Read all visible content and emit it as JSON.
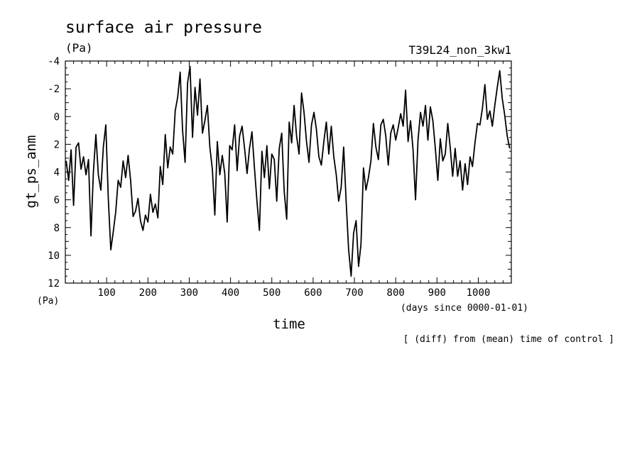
{
  "chart_data": {
    "type": "line",
    "title": "surface air pressure",
    "units": "(Pa)",
    "run_label": "T39L24_non_3kw1",
    "ylabel": "gt_ps_anm",
    "y_unit": "(Pa)",
    "xlabel": "time",
    "x_unit_note": "(days since 0000-01-01)",
    "footnote": "[ (diff) from (mean) time of control ]",
    "xlim": [
      0,
      1080
    ],
    "ylim": [
      12,
      -4
    ],
    "y_inverted": true,
    "x_ticks": [
      "100",
      "200",
      "300",
      "400",
      "500",
      "600",
      "700",
      "800",
      "900",
      "1000"
    ],
    "y_ticks": [
      "-4",
      "-2",
      "0",
      "2",
      "4",
      "6",
      "8",
      "10",
      "12"
    ],
    "grid": false,
    "series": [
      {
        "x": [
          2,
          8,
          14,
          20,
          26,
          32,
          38,
          44,
          50,
          56,
          62,
          68,
          74,
          80,
          86,
          92,
          98,
          104,
          110,
          116,
          122,
          128,
          134,
          140,
          146,
          152,
          158,
          164,
          170,
          176,
          182,
          188,
          194,
          200,
          206,
          212,
          218,
          224,
          230,
          236,
          242,
          248,
          254,
          260,
          266,
          272,
          278,
          284,
          290,
          296,
          302,
          308,
          314,
          320,
          326,
          332,
          338,
          344,
          350,
          356,
          362,
          368,
          374,
          380,
          386,
          392,
          398,
          404,
          410,
          416,
          422,
          428,
          434,
          440,
          446,
          452,
          458,
          464,
          470,
          476,
          482,
          488,
          494,
          500,
          506,
          512,
          518,
          524,
          530,
          536,
          542,
          548,
          554,
          560,
          566,
          572,
          578,
          584,
          590,
          596,
          602,
          608,
          614,
          620,
          626,
          632,
          638,
          644,
          650,
          656,
          662,
          668,
          674,
          680,
          686,
          692,
          698,
          704,
          710,
          716,
          722,
          728,
          734,
          740,
          746,
          752,
          758,
          764,
          770,
          776,
          782,
          788,
          794,
          800,
          806,
          812,
          818,
          824,
          830,
          836,
          842,
          848,
          854,
          860,
          866,
          872,
          878,
          884,
          890,
          896,
          902,
          908,
          914,
          920,
          926,
          932,
          938,
          944,
          950,
          956,
          962,
          968,
          974,
          980,
          986,
          992,
          998,
          1004,
          1010,
          1016,
          1022,
          1028,
          1034,
          1040,
          1046,
          1052,
          1058,
          1064,
          1070,
          1076
        ],
        "y": [
          3.2,
          4.6,
          2.4,
          6.4,
          2.2,
          1.9,
          3.8,
          2.9,
          4.2,
          3.1,
          8.6,
          4.0,
          1.3,
          4.2,
          5.3,
          2.2,
          0.6,
          5.9,
          9.6,
          8.3,
          6.9,
          4.6,
          5.1,
          3.2,
          4.4,
          2.8,
          4.6,
          7.2,
          6.8,
          5.9,
          7.5,
          8.2,
          7.1,
          7.6,
          5.6,
          6.9,
          6.3,
          7.3,
          3.6,
          4.9,
          1.3,
          3.7,
          2.2,
          2.7,
          -0.4,
          -1.4,
          -3.2,
          1.0,
          3.3,
          -2.4,
          -3.6,
          1.5,
          -2.1,
          -0.1,
          -2.7,
          1.2,
          0.3,
          -0.8,
          2.2,
          3.8,
          7.1,
          1.8,
          4.2,
          2.8,
          4.1,
          7.6,
          2.1,
          2.4,
          0.6,
          3.9,
          1.4,
          0.7,
          2.3,
          4.1,
          2.3,
          1.1,
          3.7,
          6.1,
          8.2,
          2.5,
          4.4,
          2.1,
          5.2,
          2.7,
          3.1,
          6.1,
          2.3,
          1.2,
          5.4,
          7.4,
          0.4,
          1.9,
          -0.8,
          1.4,
          2.7,
          -1.7,
          -0.3,
          1.8,
          3.3,
          0.6,
          -0.3,
          0.9,
          2.9,
          3.5,
          1.8,
          0.4,
          2.7,
          0.7,
          2.9,
          4.2,
          6.1,
          5.1,
          2.2,
          6.1,
          9.6,
          11.5,
          8.4,
          7.5,
          10.8,
          9.2,
          3.7,
          5.3,
          4.4,
          3.2,
          0.5,
          2.2,
          3.1,
          0.6,
          0.2,
          1.4,
          3.5,
          1.2,
          0.6,
          1.7,
          0.8,
          -0.2,
          0.7,
          -1.9,
          1.8,
          0.3,
          2.4,
          6.0,
          1.7,
          -0.3,
          0.7,
          -0.8,
          1.7,
          -0.7,
          0.3,
          2.3,
          4.6,
          1.6,
          3.2,
          2.7,
          0.5,
          2.2,
          4.3,
          2.3,
          4.3,
          3.2,
          5.3,
          3.4,
          4.9,
          2.9,
          3.6,
          1.9,
          0.5,
          0.6,
          -0.6,
          -2.3,
          0.2,
          -0.4,
          0.7,
          -0.8,
          -2.1,
          -3.3,
          -1.3,
          -0.1,
          1.4,
          2.3
        ]
      }
    ]
  }
}
